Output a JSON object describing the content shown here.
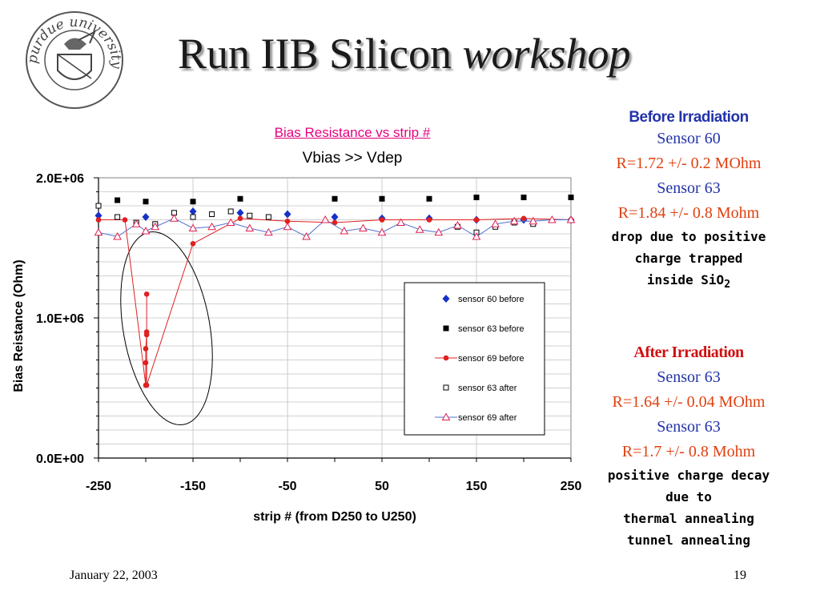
{
  "slide": {
    "title_main": "Run IIB Silicon ",
    "title_italic": "workshop",
    "logo_text": "purdue university",
    "footer_date": "January 22, 2003",
    "page_number": "19"
  },
  "notes": {
    "before_head": "Before Irradiation",
    "before_s60": "Sensor 60",
    "before_r60": "R=1.72 +/- 0.2 MOhm",
    "before_s63": "Sensor 63",
    "before_r63": "R=1.84 +/- 0.8 Mohm",
    "before_expl1": "drop due to positive",
    "before_expl2": "charge trapped",
    "before_expl3": "inside SiO",
    "before_expl3_sub": "2",
    "after_head": "After Irradiation",
    "after_s1": "Sensor 63",
    "after_r1": "R=1.64 +/- 0.04 MOhm",
    "after_s2": "Sensor 63",
    "after_r2": "R=1.7 +/- 0.8 Mohm",
    "after_expl1": "positive charge decay",
    "after_expl2": "due to",
    "after_expl3": "thermal annealing",
    "after_expl4": "tunnel annealing"
  },
  "chart_data": {
    "type": "scatter",
    "title": "Bias Resistance vs strip # ",
    "subtitle": "Vbias >> Vdep",
    "xlabel": "strip # (from D250 to U250)",
    "ylabel": "Bias Reistance (Ohm)",
    "xlim": [
      -250,
      250
    ],
    "ylim": [
      0,
      2000000
    ],
    "x_ticks": [
      "-250",
      "-150",
      "-50",
      "50",
      "150",
      "250"
    ],
    "y_ticks": [
      "0.0E+00",
      "1.0E+06",
      "2.0E+06"
    ],
    "grid": true,
    "legend_position": "right",
    "series": [
      {
        "name": "sensor 60 before",
        "marker": "diamond",
        "color": "#1530c8",
        "line": false,
        "x": [
          -250,
          -200,
          -150,
          -100,
          -50,
          0,
          50,
          100,
          150,
          200,
          250
        ],
        "y": [
          1730000,
          1720000,
          1760000,
          1750000,
          1740000,
          1720000,
          1710000,
          1710000,
          1700000,
          1700000,
          1700000
        ]
      },
      {
        "name": "sensor 63 before",
        "marker": "square",
        "color": "#000000",
        "line": false,
        "x": [
          -230,
          -200,
          -150,
          -100,
          0,
          50,
          100,
          150,
          200,
          250
        ],
        "y": [
          1840000,
          1830000,
          1830000,
          1850000,
          1850000,
          1850000,
          1850000,
          1860000,
          1860000,
          1860000
        ],
        "filled": true
      },
      {
        "name": "sensor 69 before",
        "marker": "circle",
        "color": "#e02020",
        "line": true,
        "x": [
          -250,
          -222,
          -200,
          -200,
          -200,
          -199,
          -199,
          -199,
          -199,
          -150,
          -100,
          -50,
          0,
          50,
          100,
          150,
          200,
          250
        ],
        "y": [
          1700000,
          1700000,
          520000,
          680000,
          780000,
          880000,
          900000,
          1170000,
          520000,
          1530000,
          1710000,
          1690000,
          1680000,
          1700000,
          1700000,
          1700000,
          1710000,
          1700000
        ]
      },
      {
        "name": "sensor 63 after",
        "marker": "square",
        "color": "#000000",
        "line": false,
        "filled": false,
        "x": [
          -250,
          -230,
          -210,
          -190,
          -170,
          -150,
          -130,
          -110,
          -90,
          -70,
          130,
          150,
          170,
          190,
          210
        ],
        "y": [
          1800000,
          1720000,
          1680000,
          1670000,
          1750000,
          1720000,
          1740000,
          1760000,
          1730000,
          1720000,
          1650000,
          1610000,
          1650000,
          1680000,
          1670000
        ]
      },
      {
        "name": "sensor 69 after",
        "marker": "triangle",
        "color": "#e02050",
        "line": true,
        "line_color": "#5070d0",
        "filled": false,
        "x": [
          -250,
          -230,
          -210,
          -200,
          -190,
          -170,
          -150,
          -130,
          -110,
          -90,
          -70,
          -50,
          -30,
          -10,
          10,
          30,
          50,
          70,
          90,
          110,
          130,
          150,
          170,
          190,
          210,
          230,
          250
        ],
        "y": [
          1610000,
          1580000,
          1670000,
          1620000,
          1650000,
          1710000,
          1640000,
          1650000,
          1680000,
          1640000,
          1610000,
          1650000,
          1580000,
          1700000,
          1620000,
          1640000,
          1610000,
          1680000,
          1630000,
          1610000,
          1660000,
          1580000,
          1670000,
          1690000,
          1690000,
          1700000,
          1700000
        ]
      }
    ],
    "annotation": "ellipse highlighting the drop of sensor 69 before near strip -200"
  }
}
